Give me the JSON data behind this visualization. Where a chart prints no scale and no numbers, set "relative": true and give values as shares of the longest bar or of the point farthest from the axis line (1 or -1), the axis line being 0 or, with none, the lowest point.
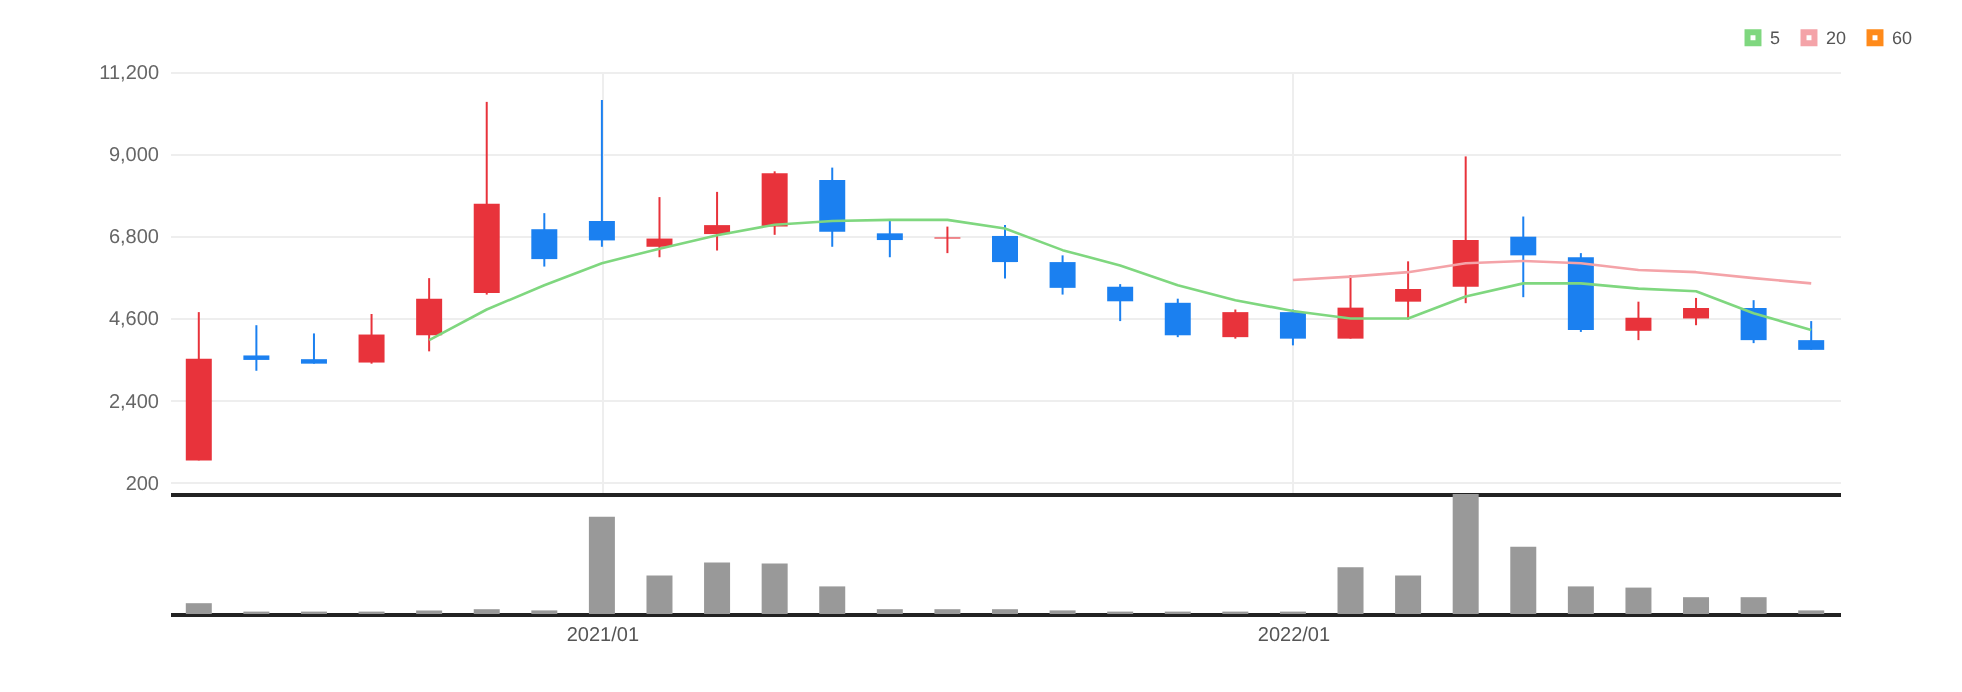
{
  "chart_data": [
    {
      "type": "candlestick",
      "categories": [
        null,
        null,
        null,
        null,
        null,
        null,
        null,
        "2021/01",
        null,
        null,
        null,
        null,
        null,
        null,
        null,
        null,
        null,
        null,
        null,
        "2022/01",
        null,
        null,
        null,
        null,
        null,
        null,
        null,
        null,
        null
      ],
      "ohlc": [
        [
          800,
          4770,
          800,
          3520
        ],
        [
          3610,
          4420,
          3200,
          3490
        ],
        [
          3510,
          4200,
          3390,
          3390
        ],
        [
          3420,
          4720,
          3390,
          4170
        ],
        [
          4150,
          5680,
          3720,
          5130
        ],
        [
          5280,
          10400,
          5240,
          7670
        ],
        [
          6990,
          7420,
          5990,
          6190
        ],
        [
          7210,
          10450,
          6520,
          6690
        ],
        [
          6520,
          7850,
          6240,
          6740
        ],
        [
          6860,
          7990,
          6420,
          7100
        ],
        [
          7060,
          8540,
          6840,
          8490
        ],
        [
          8310,
          8640,
          6520,
          6920
        ],
        [
          6880,
          7210,
          6240,
          6700
        ],
        [
          6740,
          7060,
          6350,
          6770
        ],
        [
          6810,
          7100,
          5670,
          6110
        ],
        [
          6110,
          6290,
          5240,
          5420
        ],
        [
          5450,
          5520,
          4530,
          5060
        ],
        [
          5020,
          5130,
          4100,
          4150
        ],
        [
          4100,
          4840,
          4060,
          4770
        ],
        [
          4770,
          4840,
          3880,
          4060
        ],
        [
          4060,
          5760,
          4060,
          4890
        ],
        [
          5050,
          6130,
          4570,
          5390
        ],
        [
          5450,
          8940,
          5010,
          6700
        ],
        [
          6790,
          7330,
          5170,
          6290
        ],
        [
          6240,
          6350,
          4240,
          4290
        ],
        [
          4270,
          5050,
          4020,
          4620
        ],
        [
          4600,
          5150,
          4420,
          4880
        ],
        [
          4880,
          5090,
          3940,
          4020
        ],
        [
          4020,
          4530,
          3760,
          3760
        ]
      ],
      "colors": [
        "#e8333b",
        "#1b80f0",
        "#1b80f0",
        "#e8333b",
        "#e8333b",
        "#e8333b",
        "#1b80f0",
        "#1b80f0",
        "#e8333b",
        "#e8333b",
        "#e8333b",
        "#1b80f0",
        "#1b80f0",
        "#e8333b",
        "#1b80f0",
        "#1b80f0",
        "#1b80f0",
        "#1b80f0",
        "#e8333b",
        "#1b80f0",
        "#e8333b",
        "#e8333b",
        "#e8333b",
        "#1b80f0",
        "#1b80f0",
        "#e8333b",
        "#e8333b",
        "#1b80f0",
        "#1b80f0"
      ],
      "series": [
        {
          "name": "5",
          "type": "line",
          "color": "#7fd77f",
          "values": [
            null,
            null,
            null,
            null,
            4020,
            4840,
            5490,
            6080,
            6470,
            6830,
            7110,
            7210,
            7240,
            7240,
            7010,
            6430,
            6020,
            5490,
            5090,
            4800,
            4600,
            4600,
            5190,
            5540,
            5540,
            5400,
            5330,
            4740,
            4290
          ]
        },
        {
          "name": "20",
          "type": "line",
          "color": "#f4a3a8",
          "values": [
            null,
            null,
            null,
            null,
            null,
            null,
            null,
            null,
            null,
            null,
            null,
            null,
            null,
            null,
            null,
            null,
            null,
            null,
            null,
            5630,
            5720,
            5840,
            6080,
            6140,
            6080,
            5900,
            5840,
            5680,
            5540
          ]
        },
        {
          "name": "60",
          "type": "line",
          "color": "#ff8a1a",
          "values": [
            null,
            null,
            null,
            null,
            null,
            null,
            null,
            null,
            null,
            null,
            null,
            null,
            null,
            null,
            null,
            null,
            null,
            null,
            null,
            null,
            null,
            null,
            null,
            null,
            null,
            null,
            null,
            null,
            null
          ]
        }
      ],
      "ylim": [
        -100,
        11200
      ],
      "yticks": [
        {
          "value": 200,
          "label": "200"
        },
        {
          "value": 2400,
          "label": "2,400"
        },
        {
          "value": 4600,
          "label": "4,600"
        },
        {
          "value": 6800,
          "label": "6,800"
        },
        {
          "value": 9000,
          "label": "9,000"
        },
        {
          "value": 11200,
          "label": "11,200"
        }
      ],
      "tick_labels": "y",
      "grid": true,
      "legend": "top right"
    },
    {
      "type": "bar",
      "relative": true,
      "categories": [
        null,
        null,
        null,
        null,
        null,
        null,
        null,
        "2021/01",
        null,
        null,
        null,
        null,
        null,
        null,
        null,
        null,
        null,
        null,
        null,
        "2022/01",
        null,
        null,
        null,
        null,
        null,
        null,
        null,
        null,
        null
      ],
      "values": [
        0.09,
        0.02,
        0.02,
        0.02,
        0.03,
        0.04,
        0.03,
        0.81,
        0.32,
        0.43,
        0.42,
        0.23,
        0.04,
        0.04,
        0.04,
        0.03,
        0.02,
        0.02,
        0.02,
        0.02,
        0.39,
        0.32,
        1,
        0.56,
        0.23,
        0.22,
        0.14,
        0.14,
        0.03
      ],
      "color": "#999999",
      "tick_labels": "x",
      "grid": false
    }
  ]
}
